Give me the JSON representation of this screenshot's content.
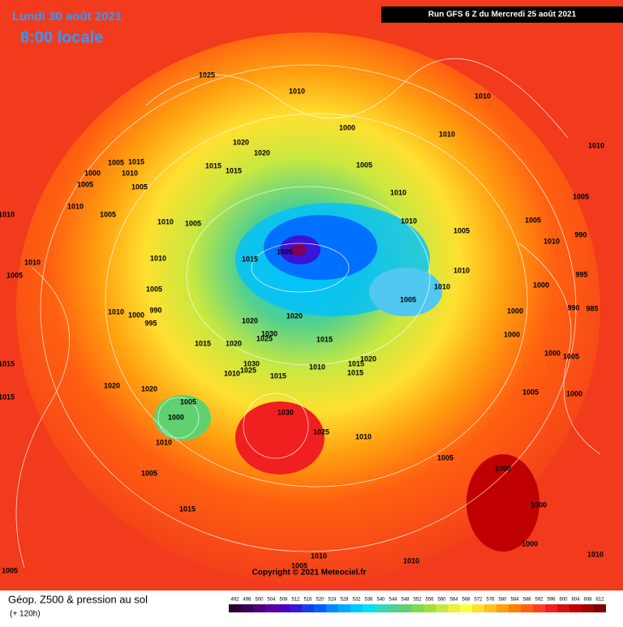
{
  "header": {
    "date": "Lundi 30 août 2021",
    "time": "8:00 locale",
    "run": "Run GFS 6 Z du Mercredi 25 août 2021"
  },
  "copyright": "Copyright © 2021 Meteociel.fr",
  "footer": {
    "title": "Géop. Z500 & pression au sol",
    "lead": "(+ 120h)"
  },
  "colorbar": {
    "ticks": [
      492,
      496,
      500,
      504,
      508,
      512,
      516,
      520,
      524,
      528,
      532,
      536,
      540,
      544,
      548,
      552,
      556,
      560,
      564,
      568,
      572,
      576,
      580,
      584,
      588,
      592,
      596,
      600,
      604,
      608,
      612
    ],
    "colors": [
      "#2a0030",
      "#3b0050",
      "#50007a",
      "#5b00a0",
      "#4b00c0",
      "#3a14d8",
      "#1a3cf0",
      "#0060ff",
      "#0088ff",
      "#00aaff",
      "#00c8ff",
      "#00e0f0",
      "#30d8c0",
      "#50d090",
      "#60d070",
      "#80d850",
      "#a0e040",
      "#c8e840",
      "#e8f040",
      "#ffff40",
      "#ffe030",
      "#ffc020",
      "#ffa010",
      "#ff8000",
      "#ff6010",
      "#ff4020",
      "#f02020",
      "#d81010",
      "#c00000",
      "#a00000",
      "#800000"
    ]
  },
  "isobar_labels": [
    "1025",
    "1010",
    "1010",
    "1000",
    "1010",
    "1010",
    "1020",
    "1020",
    "1005",
    "1015",
    "1000",
    "1010",
    "1015",
    "1015",
    "1005",
    "1005",
    "1005",
    "1010",
    "1005",
    "1010",
    "1005",
    "1010",
    "1005",
    "1010",
    "1005",
    "1005",
    "1010",
    "990",
    "1005",
    "1010",
    "1010",
    "1015",
    "1010",
    "1005",
    "1010",
    "995",
    "1010",
    "1000",
    "1005",
    "1005",
    "990",
    "1000",
    "1010",
    "1000",
    "990",
    "985",
    "995",
    "1020",
    "1020",
    "1030",
    "1025",
    "1015",
    "1000",
    "1015",
    "1020",
    "1000",
    "1005",
    "1030",
    "1020",
    "1015",
    "1010",
    "1015",
    "1025",
    "1010",
    "1015",
    "1015",
    "1020",
    "1020",
    "1005",
    "1000",
    "1015",
    "1005",
    "1030",
    "1000",
    "1025",
    "1010",
    "1010",
    "1005",
    "1000",
    "1005",
    "1000",
    "1015",
    "1000",
    "1010",
    "1010",
    "1005",
    "1010",
    "1005"
  ]
}
